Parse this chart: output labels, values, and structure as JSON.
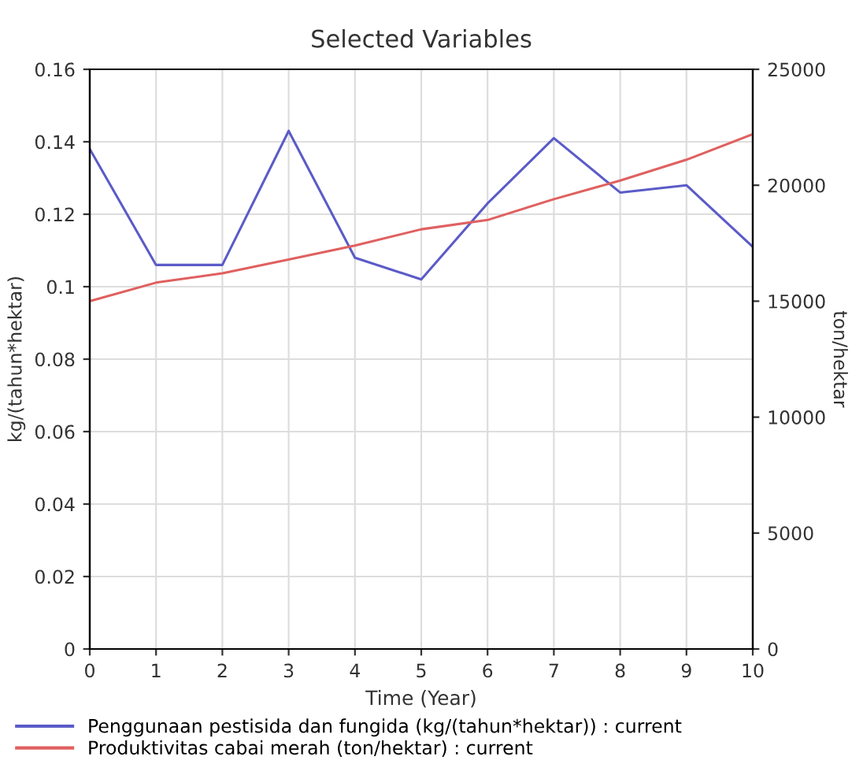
{
  "chart_data": {
    "type": "line",
    "title": "Selected Variables",
    "xlabel": "Time (Year)",
    "ylabel": "kg/(tahun*hektar)",
    "y2label": "ton/hektar",
    "x": [
      0,
      1,
      2,
      3,
      4,
      5,
      6,
      7,
      8,
      9,
      10
    ],
    "series": [
      {
        "name": "Penggunaan pestisida dan fungida (kg/(tahun*hektar)) : current",
        "color": "#5b5bc8",
        "values": [
          0.138,
          0.106,
          0.106,
          0.143,
          0.108,
          0.102,
          0.123,
          0.141,
          0.126,
          0.128,
          0.111
        ]
      },
      {
        "name": "Produktivitas cabai merah (ton/hektar) : current",
        "color": "#e06060",
        "axis": "y2",
        "values": [
          15000,
          15800,
          16200,
          16800,
          17400,
          18100,
          18500,
          19400,
          20200,
          21100,
          22200
        ]
      }
    ],
    "xlim": [
      0,
      10
    ],
    "xticks": [
      0,
      1,
      2,
      3,
      4,
      5,
      6,
      7,
      8,
      9,
      10
    ],
    "ylim": [
      0,
      0.16
    ],
    "yticks": [
      0,
      0.02,
      0.04,
      0.06,
      0.08,
      0.1,
      0.12,
      0.14,
      0.16
    ],
    "y2lim": [
      0,
      25000
    ],
    "y2ticks": [
      0,
      5000,
      10000,
      15000,
      20000,
      25000
    ],
    "grid": true,
    "legend": "bottom",
    "marker": "none",
    "line_style": "solid"
  }
}
